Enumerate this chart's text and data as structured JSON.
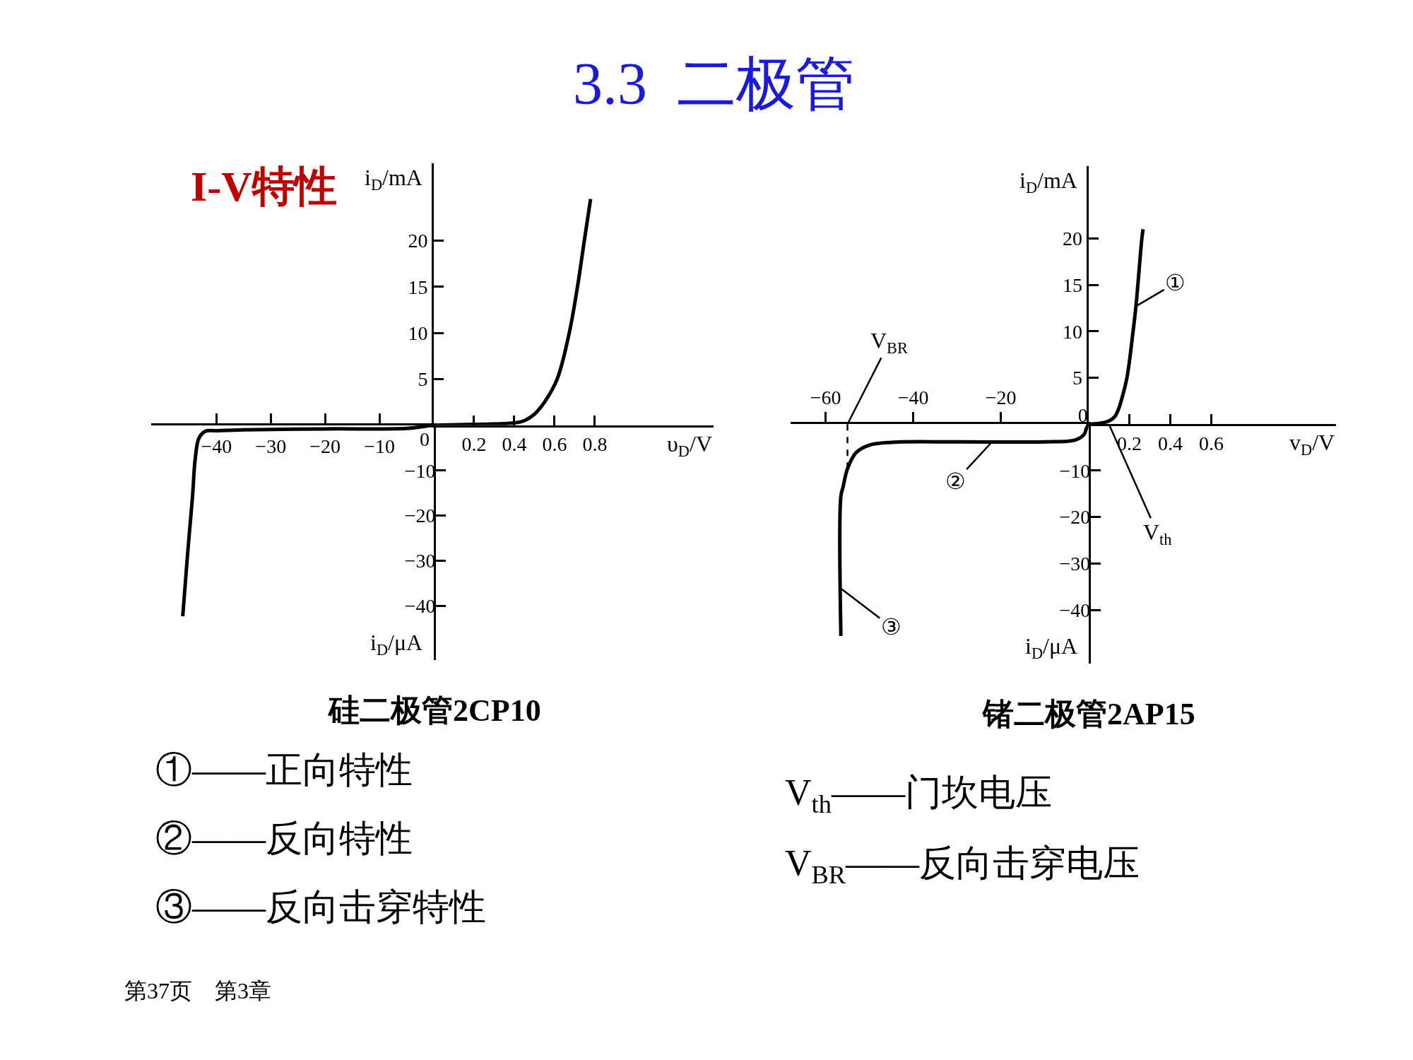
{
  "chart_data": [
    {
      "type": "line",
      "xlabel": "υ$_{D}$/V",
      "ylabel": "i$_{D}$/mA",
      "color": "#000000",
      "x": [
        0,
        0.2,
        0.4,
        0.45,
        0.5,
        0.55,
        0.613,
        0.673,
        0.714,
        0.748,
        0.779
      ],
      "values": [
        0,
        0.1,
        0.25,
        0.5,
        1.2,
        2.5,
        5,
        10,
        15,
        20,
        24.5
      ],
      "xlim": [
        0,
        1.39
      ],
      "ylim": [
        0,
        28.4
      ],
      "xticks": [
        0,
        0.2,
        0.4,
        0.6,
        0.8
      ],
      "yticks": [
        5,
        10,
        15,
        20
      ]
    },
    {
      "type": "line",
      "title": "硅二极管2CP10",
      "ylabel": "i$_{D}$/μA",
      "color": "#000000",
      "x": [
        0,
        -2,
        -5,
        -20,
        -35,
        -40,
        -42,
        -43.2,
        -43.9,
        -44.4,
        -45.3,
        -46.2
      ],
      "values": [
        0,
        -0.3,
        -0.7,
        -0.8,
        -1,
        -1.2,
        -1.3,
        -2.8,
        -7.4,
        -15.8,
        -28.4,
        -42.3
      ],
      "xlim": [
        -52,
        0
      ],
      "ylim": [
        -52,
        0
      ],
      "xticks": [
        -40,
        -30,
        -20,
        -10
      ],
      "yticks": [
        -40,
        -30,
        -20,
        -10
      ]
    },
    {
      "type": "line",
      "xlabel": "v$_{D}$/V",
      "ylabel": "i$_{D}$/mA",
      "color": "#000000",
      "x": [
        0,
        0.05,
        0.1,
        0.13,
        0.15,
        0.161,
        0.188,
        0.218,
        0.232,
        0.261,
        0.267
      ],
      "values": [
        0,
        0.08,
        0.35,
        0.85,
        1.8,
        2.6,
        5,
        10,
        12.7,
        20,
        21
      ],
      "xlim": [
        0,
        1.21
      ],
      "ylim": [
        0,
        27.8
      ],
      "xticks": [
        0.2,
        0.4,
        0.6
      ],
      "yticks": [
        0,
        5,
        10,
        15,
        20
      ],
      "annotations": [
        {
          "text": "①",
          "x": 0.232,
          "y": 12.7
        },
        {
          "text": "V$_{th}$",
          "x": 0.1,
          "y": 0
        }
      ]
    },
    {
      "type": "line",
      "title": "锗二极管2AP15",
      "ylabel": "i$_{D}$/μA",
      "color": "#000000",
      "x": [
        0,
        -0.5,
        -1,
        -3,
        -10,
        -30,
        -45,
        -50,
        -53,
        -55,
        -56,
        -56.5,
        -56.5
      ],
      "values": [
        0,
        -1.0,
        -2.2,
        -3.4,
        -3.8,
        -3.8,
        -3.9,
        -4.5,
        -6.1,
        -9.6,
        -13.5,
        -15.5,
        -45.6
      ],
      "xlim": [
        -68,
        0
      ],
      "ylim": [
        -51.5,
        0
      ],
      "xticks": [
        -60,
        -40,
        -20
      ],
      "yticks": [
        -40,
        -30,
        -20,
        -10
      ],
      "ref_lines": [
        {
          "axis": "x",
          "value": -55,
          "line_style": "dashed"
        }
      ],
      "annotations": [
        {
          "text": "V$_{BR}$",
          "x": -55,
          "y": 0
        },
        {
          "text": "②",
          "x": -22,
          "y": -3.8
        },
        {
          "text": "③",
          "x": -56.5,
          "y": -35.4
        }
      ]
    },
    {
      "type": "other",
      "title": "3.3  二极管",
      "annotations": [
        "I-V特性",
        "①——正向特性",
        "②——反向特性",
        "③——反向击穿特性",
        "V$_{th}$——门坎电压",
        "V$_{BR}$——反向击穿电压",
        "第37页　第3章"
      ]
    }
  ]
}
